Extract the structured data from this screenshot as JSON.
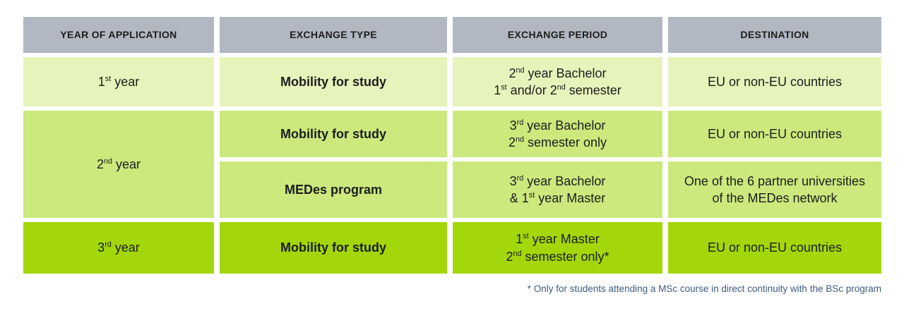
{
  "chart_data": {
    "type": "table",
    "title": "",
    "columns": [
      "YEAR OF APPLICATION",
      "EXCHANGE TYPE",
      "EXCHANGE PERIOD",
      "DESTINATION"
    ],
    "rows": [
      [
        "1st year",
        "Mobility for study",
        "2nd year Bachelor, 1st and/or 2nd semester",
        "EU or non-EU countries"
      ],
      [
        "2nd year",
        "Mobility for study",
        "3rd year Bachelor, 2nd semester only",
        "EU or non-EU countries"
      ],
      [
        "2nd year",
        "MEDes program",
        "3rd year Bachelor & 1st year Master",
        "One of the 6 partner universities of the MEDes network"
      ],
      [
        "3rd year",
        "Mobility for study",
        "1st year Master, 2nd semester only*",
        "EU or non-EU countries"
      ]
    ],
    "merged_cells": "YEAR OF APPLICATION value '2nd year' spans data rows 2 and 3",
    "footnote": "* Only for students attending a MSc course in direct continuity with the BSc program",
    "legend_position": "none",
    "grid": "white gaps between colored cells"
  },
  "display": {
    "headers": {
      "year": "YEAR OF APPLICATION",
      "type": "EXCHANGE TYPE",
      "period": "EXCHANGE PERIOD",
      "destination": "DESTINATION"
    },
    "row1": {
      "year": "1^{st} year",
      "type": "Mobility for study",
      "period": "2^{nd} year Bachelor\n1^{st} and/or 2^{nd} semester",
      "destination": "EU or non-EU countries"
    },
    "row2": {
      "year": "2^{nd} year",
      "a": {
        "type": "Mobility for study",
        "period": "3^{rd} year Bachelor\n2^{nd} semester only",
        "destination": "EU or non-EU countries"
      },
      "b": {
        "type": "MEDes program",
        "period": "3^{rd} year Bachelor\n& 1^{st} year Master",
        "destination": "One of the 6 partner universities\nof the MEDes network"
      }
    },
    "row3": {
      "year": "3^{rd} year",
      "type": "Mobility for study",
      "period": "1^{st} year Master\n2^{nd} semester only*",
      "destination": "EU or non-EU countries"
    },
    "footnote": "* Only for students attending a MSc course in direct continuity with the BSc program"
  },
  "colors": {
    "header_bg": "#b1b8c2",
    "row1_bg": "#e6f3bb",
    "row2_bg": "#cbe97d",
    "row3_bg": "#a3d70a",
    "text": "#1d1d1b",
    "footnote_text": "#3e5a7e"
  }
}
